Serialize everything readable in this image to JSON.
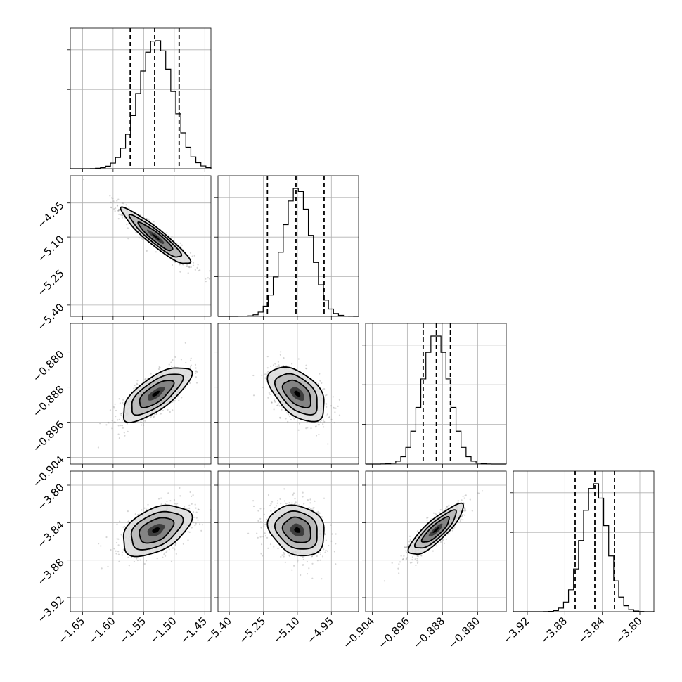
{
  "chart_data": {
    "type": "corner",
    "parameters": [
      {
        "mean": -1.53,
        "sd": 0.028,
        "quantiles": [
          -1.572,
          -1.532,
          -1.492
        ],
        "range": [
          -1.67,
          -1.44
        ],
        "ticks": [
          -1.65,
          -1.6,
          -1.55,
          -1.5,
          -1.45
        ],
        "tick_labels": [
          "−1.65",
          "−1.60",
          "−1.55",
          "−1.50",
          "−1.45"
        ]
      },
      {
        "mean": -5.1,
        "sd": 0.062,
        "quantiles": [
          -5.232,
          -5.106,
          -4.982
        ],
        "range": [
          -5.45,
          -4.83
        ],
        "ticks": [
          -5.4,
          -5.25,
          -5.1,
          -4.95
        ],
        "tick_labels": [
          "−5.40",
          "−5.25",
          "−5.10",
          "−4.95"
        ]
      },
      {
        "mean": -0.8895,
        "sd": 0.0031,
        "quantiles": [
          -0.8924,
          -0.8894,
          -0.8862
        ],
        "range": [
          -0.9055,
          -0.8735
        ],
        "ticks": [
          -0.904,
          -0.896,
          -0.888,
          -0.88
        ],
        "tick_labels": [
          "−0.904",
          "−0.896",
          "−0.888",
          "−0.880"
        ]
      },
      {
        "mean": -3.848,
        "sd": 0.0135,
        "quantiles": [
          -3.869,
          -3.848,
          -3.827
        ],
        "range": [
          -3.935,
          -3.785
        ],
        "ticks": [
          -3.92,
          -3.88,
          -3.84,
          -3.8
        ],
        "tick_labels": [
          "−3.92",
          "−3.88",
          "−3.84",
          "−3.80"
        ]
      }
    ],
    "correlations": [
      [
        1,
        -0.93,
        0.72,
        0.45
      ],
      [
        -0.93,
        1,
        -0.5,
        -0.2
      ],
      [
        0.72,
        -0.5,
        1,
        0.85
      ],
      [
        0.45,
        -0.2,
        0.85,
        1
      ]
    ],
    "contour_levels_sigma": [
      0.5,
      1,
      1.5,
      2
    ],
    "histogram_bins": 28,
    "grid": true
  }
}
